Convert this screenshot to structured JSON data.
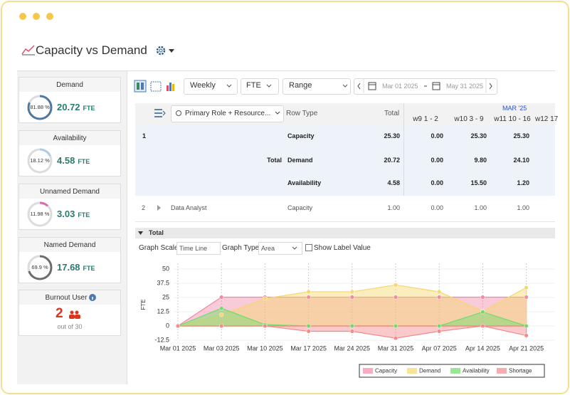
{
  "header": {
    "title": "Capacity vs Demand"
  },
  "summary_cards": [
    {
      "title": "Demand",
      "percent": 81.88,
      "percent_label": "81.88 %",
      "value": "20.72",
      "unit": "FTE",
      "color": "#4f77a3"
    },
    {
      "title": "Availability",
      "percent": 18.12,
      "percent_label": "18.12 %",
      "value": "4.58",
      "unit": "FTE",
      "color": "#a9cde8"
    },
    {
      "title": "Unnamed Demand",
      "percent": 11.98,
      "percent_label": "11.98 %",
      "value": "3.03",
      "unit": "FTE",
      "color": "#d96bb0"
    },
    {
      "title": "Named Demand",
      "percent": 69.9,
      "percent_label": "69.9 %",
      "value": "17.68",
      "unit": "FTE",
      "color": "#6d6d6d"
    }
  ],
  "burnout": {
    "title": "Burnout User",
    "value": "2",
    "note": "out of 30"
  },
  "toolbar": {
    "period": "Weekly",
    "unit": "FTE",
    "mode": "Range",
    "start_date": "Mar 01 2025",
    "end_date": "May 31 2025"
  },
  "table": {
    "group_column": "Primary Role + Resource...",
    "row_type_column": "Row Type",
    "total_column": "Total",
    "month": "MAR '25",
    "weeks": [
      "w9 1 - 2",
      "w10 3 - 9",
      "w11 10 - 16",
      "w12 17"
    ],
    "rows": [
      {
        "index": "1",
        "label": "Total",
        "lines": [
          [
            "Capacity",
            "25.30",
            "0.00",
            "25.30",
            "25.30"
          ],
          [
            "Demand",
            "20.72",
            "0.00",
            "9.80",
            "24.10"
          ],
          [
            "Availability",
            "4.58",
            "0.00",
            "15.50",
            "1.20"
          ]
        ]
      },
      {
        "index": "2",
        "label": "Data Analyst",
        "lines": [
          [
            "Capacity",
            "1.00",
            "0.00",
            "1.00",
            "1.00"
          ]
        ]
      }
    ]
  },
  "chart_panel": {
    "title": "Total",
    "scale_label": "Graph Scale",
    "scale": "Time Line",
    "type_label": "Graph Type",
    "graph_type": "Area",
    "checkbox_label": "Show Label Value"
  },
  "chart_data": {
    "type": "area",
    "y_label": "FTE",
    "categories": [
      "Mar 01 2025",
      "Mar 03 2025",
      "Mar 10 2025",
      "Mar 17 2025",
      "Mar 24 2025",
      "Mar 31 2025",
      "Apr 07 2025",
      "Apr 14 2025",
      "Apr 21 2025"
    ],
    "ylim": [
      -12.5,
      50
    ],
    "yticks": [
      50,
      37.5,
      25,
      12.5,
      0,
      -12.5
    ],
    "grid": true,
    "series": [
      {
        "name": "Capacity",
        "color": "#f28aa6",
        "values": [
          0,
          25.3,
          25.3,
          25.3,
          25.3,
          25.3,
          25.3,
          25.3,
          25.3
        ]
      },
      {
        "name": "Demand",
        "color": "#f5d76e",
        "values": [
          0,
          9.8,
          24.1,
          30,
          30,
          36,
          30,
          13,
          33.7
        ]
      },
      {
        "name": "Availability",
        "color": "#6fdc6a",
        "values": [
          0,
          15.5,
          1.2,
          0,
          0,
          0,
          0,
          12.3,
          0
        ]
      },
      {
        "name": "Shortage",
        "color": "#f48a8a",
        "values": [
          0,
          0,
          0,
          -4.7,
          -4.7,
          -10.7,
          -4.7,
          0,
          -8.4
        ]
      }
    ]
  }
}
